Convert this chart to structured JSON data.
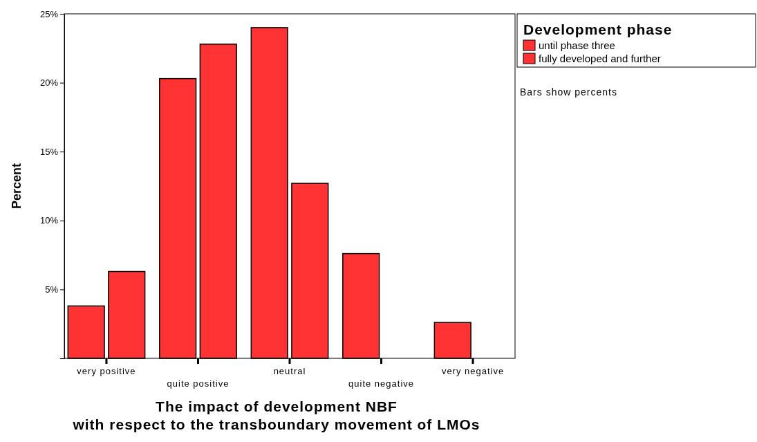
{
  "chart_data": {
    "type": "bar",
    "xlabel": "The impact of development NBF\nwith respect to the transboundary movement of LMOs",
    "ylabel": "Percent",
    "legend_title": "Development phase",
    "categories": [
      "very positive",
      "quite positive",
      "neutral",
      "quite negative",
      "very negative"
    ],
    "series": [
      {
        "name": "until phase three",
        "color": "#ff3333",
        "values": [
          3.8,
          20.3,
          24.0,
          7.6,
          2.6
        ]
      },
      {
        "name": "fully developed and further",
        "color": "#ff3333",
        "values": [
          6.3,
          22.8,
          12.7,
          null,
          null
        ]
      }
    ],
    "ylim": [
      0,
      25
    ],
    "yticks": [
      {
        "value": 5,
        "label": "5%"
      },
      {
        "value": 10,
        "label": "10%"
      },
      {
        "value": 15,
        "label": "15%"
      },
      {
        "value": 20,
        "label": "20%"
      },
      {
        "value": 25,
        "label": "25%"
      }
    ],
    "grid": false,
    "legend": "top right",
    "annotations": [
      "Bars show percents"
    ]
  }
}
